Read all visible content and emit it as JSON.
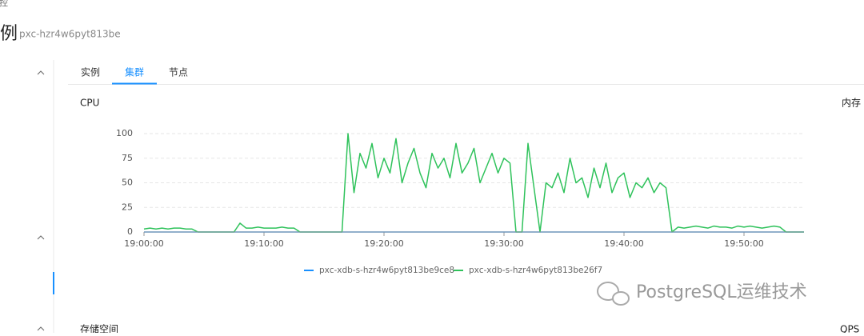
{
  "breadcrumb": "数据监控",
  "page_title": "实例",
  "instance_id": "pxc-hzr4w6pyt813be",
  "tabs": [
    "实例",
    "集群",
    "节点"
  ],
  "active_tab": 1,
  "other_panels": [
    "内存",
    "存储空间",
    "QPS"
  ],
  "watermark": "PostgreSQL运维技术",
  "chart_data": {
    "type": "line",
    "title": "CPU",
    "x": [
      0,
      0.5,
      1,
      1.5,
      2,
      2.5,
      3,
      3.5,
      4,
      4.5,
      5,
      5.5,
      6,
      6.5,
      7,
      7.5,
      8,
      8.5,
      9,
      9.5,
      10,
      10.5,
      11,
      11.5,
      12,
      12.5,
      13,
      13.5,
      14,
      14.5,
      15,
      15.5,
      16,
      16.5,
      17,
      17.5,
      18,
      18.5,
      19,
      19.5,
      20,
      20.5,
      21,
      21.5,
      22,
      22.5,
      23,
      23.5,
      24,
      24.5,
      25,
      25.5,
      26,
      26.5,
      27,
      27.5,
      28,
      28.5,
      29,
      29.5,
      30,
      30.5,
      31,
      31.5,
      32,
      32.5,
      33,
      33.5,
      34,
      34.5,
      35,
      35.5,
      36,
      36.5,
      37,
      37.5,
      38,
      38.5,
      39,
      39.5,
      40,
      40.5,
      41,
      41.5,
      42,
      42.5,
      43,
      43.5,
      44,
      44.5,
      45,
      45.5,
      46,
      46.5,
      47,
      47.5,
      48,
      48.5,
      49,
      49.5,
      50,
      50.5,
      51,
      51.5,
      52,
      52.5,
      53,
      53.5,
      54,
      54.5,
      55
    ],
    "series": [
      {
        "name": "pxc-xdb-s-hzr4w6pyt813be9ce8",
        "color": "#1890ff",
        "values": [
          0,
          0,
          0,
          0,
          0,
          0,
          0,
          0,
          0,
          0,
          0,
          0,
          0,
          0,
          0,
          0,
          0,
          0,
          0,
          0,
          0,
          0,
          0,
          0,
          0,
          0,
          0,
          0,
          0,
          0,
          0,
          0,
          0,
          0,
          0,
          0,
          0,
          0,
          0,
          0,
          0,
          0,
          0,
          0,
          0,
          0,
          0,
          0,
          0,
          0,
          0,
          0,
          0,
          0,
          0,
          0,
          0,
          0,
          0,
          0,
          0,
          0,
          0,
          0,
          0,
          0,
          0,
          0,
          0,
          0,
          0,
          0,
          0,
          0,
          0,
          0,
          0,
          0,
          0,
          0,
          0,
          0,
          0,
          0,
          0,
          0,
          0,
          0,
          0,
          0,
          0,
          0,
          0,
          0,
          0,
          0,
          0,
          0,
          0,
          0,
          0,
          0,
          0,
          0,
          0,
          0,
          0,
          0,
          0,
          0,
          0
        ]
      },
      {
        "name": "pxc-xdb-s-hzr4w6pyt813be26f7",
        "color": "#2fc25b",
        "values": [
          3,
          4,
          3,
          4,
          3,
          4,
          4,
          3,
          3,
          0,
          0,
          0,
          0,
          0,
          0,
          0,
          9,
          4,
          4,
          5,
          4,
          4,
          4,
          5,
          4,
          4,
          0,
          0,
          0,
          0,
          0,
          0,
          0,
          0,
          100,
          40,
          80,
          65,
          90,
          55,
          75,
          60,
          95,
          50,
          70,
          85,
          60,
          45,
          80,
          65,
          75,
          55,
          90,
          60,
          70,
          85,
          50,
          65,
          80,
          60,
          75,
          70,
          0,
          0,
          90,
          45,
          0,
          50,
          45,
          60,
          40,
          75,
          50,
          55,
          35,
          65,
          45,
          70,
          40,
          55,
          60,
          35,
          50,
          45,
          55,
          40,
          50,
          45,
          0,
          5,
          4,
          5,
          6,
          5,
          4,
          6,
          5,
          5,
          4,
          6,
          5,
          6,
          5,
          4,
          5,
          6,
          5,
          0,
          0,
          0,
          0
        ]
      }
    ],
    "xlim": [
      0,
      55
    ],
    "xticks": [
      {
        "value": 0,
        "label": "19:00:00"
      },
      {
        "value": 10,
        "label": "19:10:00"
      },
      {
        "value": 20,
        "label": "19:20:00"
      },
      {
        "value": 30,
        "label": "19:30:00"
      },
      {
        "value": 40,
        "label": "19:40:00"
      },
      {
        "value": 50,
        "label": "19:50:00"
      }
    ],
    "ylim": [
      0,
      100
    ],
    "yticks": [
      0,
      25,
      50,
      75,
      100
    ],
    "grid": true
  }
}
